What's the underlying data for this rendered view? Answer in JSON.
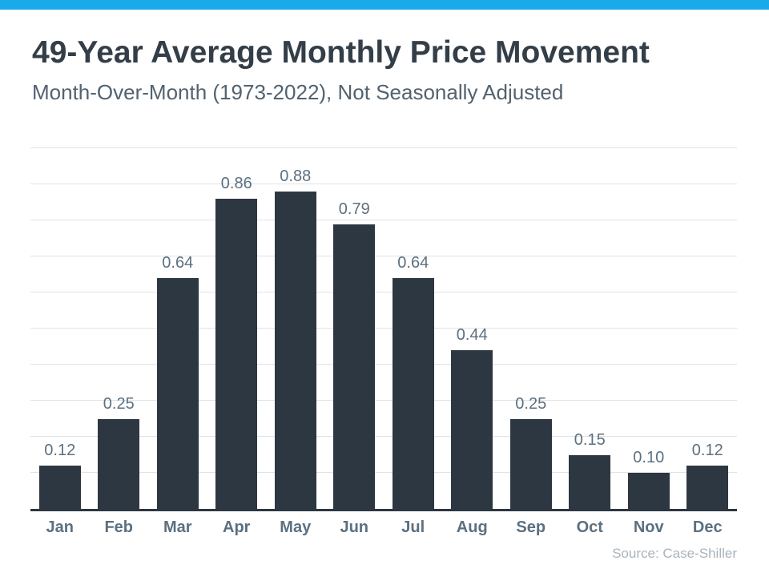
{
  "page": {
    "accent_color": "#1BAAE9",
    "background_color": "#FFFFFF"
  },
  "header": {
    "title": "49-Year Average Monthly Price Movement",
    "subtitle": "Month-Over-Month (1973-2022), Not Seasonally Adjusted"
  },
  "chart_data": {
    "type": "bar",
    "title": "49-Year Average Monthly Price Movement",
    "subtitle": "Month-Over-Month (1973-2022), Not Seasonally Adjusted",
    "categories": [
      "Jan",
      "Feb",
      "Mar",
      "Apr",
      "May",
      "Jun",
      "Jul",
      "Aug",
      "Sep",
      "Oct",
      "Nov",
      "Dec"
    ],
    "values": [
      0.12,
      0.25,
      0.64,
      0.86,
      0.88,
      0.79,
      0.64,
      0.44,
      0.25,
      0.15,
      0.1,
      0.12
    ],
    "value_labels": [
      "0.12",
      "0.25",
      "0.64",
      "0.86",
      "0.88",
      "0.79",
      "0.64",
      "0.44",
      "0.25",
      "0.15",
      "0.10",
      "0.12"
    ],
    "xlabel": "",
    "ylabel": "",
    "ylim": [
      0,
      1.0
    ],
    "gridline_interval": 0.1,
    "grid": true,
    "legend": false,
    "bar_color": "#2D3742",
    "axis_color": "#2D3742",
    "gridline_color": "#E0E3E5",
    "label_color": "#5B7080",
    "source_note": "Source: Case-Shiller"
  }
}
